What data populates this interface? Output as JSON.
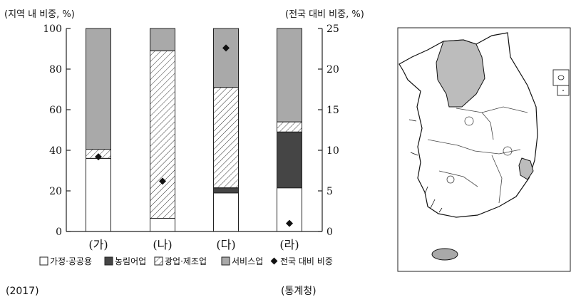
{
  "chart_data": {
    "type": "bar",
    "stacked": true,
    "categories": [
      "(가)",
      "(나)",
      "(다)",
      "(라)"
    ],
    "left_axis": {
      "label": "(지역 내 비중, %)",
      "ylim": [
        0,
        100
      ],
      "ticks": [
        "0",
        "20",
        "40",
        "60",
        "80",
        "100"
      ]
    },
    "right_axis": {
      "label": "(전국 대비 비중, %)",
      "ylim": [
        0,
        25
      ],
      "ticks": [
        "0",
        "5",
        "10",
        "15",
        "20",
        "25"
      ]
    },
    "series": [
      {
        "name": "가정·공공용",
        "values": [
          36,
          6.5,
          19,
          21.5
        ]
      },
      {
        "name": "농림어업",
        "values": [
          0,
          0,
          2.5,
          27.5
        ]
      },
      {
        "name": "광업·제조업",
        "values": [
          4.5,
          82.5,
          49.5,
          5
        ]
      },
      {
        "name": "서비스업",
        "values": [
          59.5,
          11,
          29,
          46
        ]
      }
    ],
    "points": {
      "name": "전국 대비 비중",
      "values": [
        9.2,
        6.2,
        22.6,
        1.0
      ]
    },
    "legend_position": "bottom",
    "colors": {
      "household": "#ffffff",
      "agri": "#454545",
      "industry_hatch": "#333333",
      "service": "#a9a9a9"
    }
  },
  "footer": {
    "year": "(2017)",
    "source": "(통계청)"
  }
}
